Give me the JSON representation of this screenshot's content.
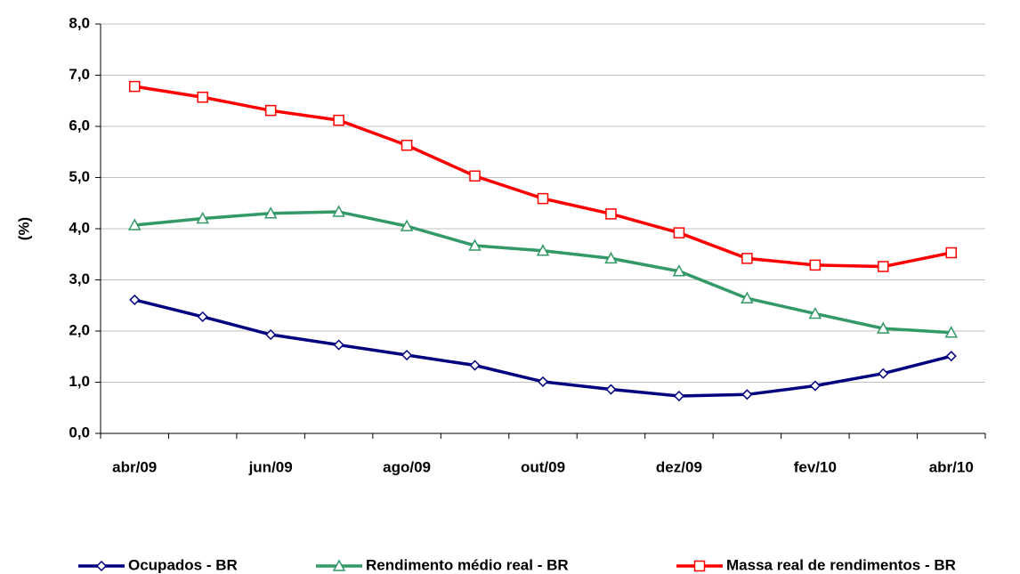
{
  "chart_data": {
    "type": "line",
    "ylabel": "(%)",
    "categories": [
      "abr/09",
      null,
      "jun/09",
      null,
      "ago/09",
      null,
      "out/09",
      null,
      "dez/09",
      null,
      "fev/10",
      null,
      "abr/10"
    ],
    "series": [
      {
        "name": "Ocupados - BR",
        "color": "#000080",
        "marker": "diamond",
        "values": [
          2.61,
          2.28,
          1.93,
          1.73,
          1.53,
          1.33,
          1.01,
          0.86,
          0.73,
          0.76,
          0.93,
          1.17,
          1.51
        ]
      },
      {
        "name": "Rendimento médio real - BR",
        "color": "#339966",
        "marker": "triangle",
        "values": [
          4.07,
          4.2,
          4.3,
          4.33,
          4.05,
          3.67,
          3.57,
          3.42,
          3.17,
          2.64,
          2.34,
          2.05,
          1.97
        ]
      },
      {
        "name": "Massa real de rendimentos - BR",
        "color": "#ff0000",
        "marker": "square",
        "values": [
          6.78,
          6.57,
          6.31,
          6.12,
          5.63,
          5.03,
          4.59,
          4.29,
          3.92,
          3.42,
          3.29,
          3.26,
          3.53
        ]
      }
    ],
    "ylim": [
      0,
      8
    ],
    "yticks": [
      {
        "value": 0,
        "label": "0,0"
      },
      {
        "value": 1,
        "label": "1,0"
      },
      {
        "value": 2,
        "label": "2,0"
      },
      {
        "value": 3,
        "label": "3,0"
      },
      {
        "value": 4,
        "label": "4,0"
      },
      {
        "value": 5,
        "label": "5,0"
      },
      {
        "value": 6,
        "label": "6,0"
      },
      {
        "value": 7,
        "label": "7,0"
      },
      {
        "value": 8,
        "label": "8,0"
      }
    ],
    "grid": true,
    "legend": "bottom"
  }
}
